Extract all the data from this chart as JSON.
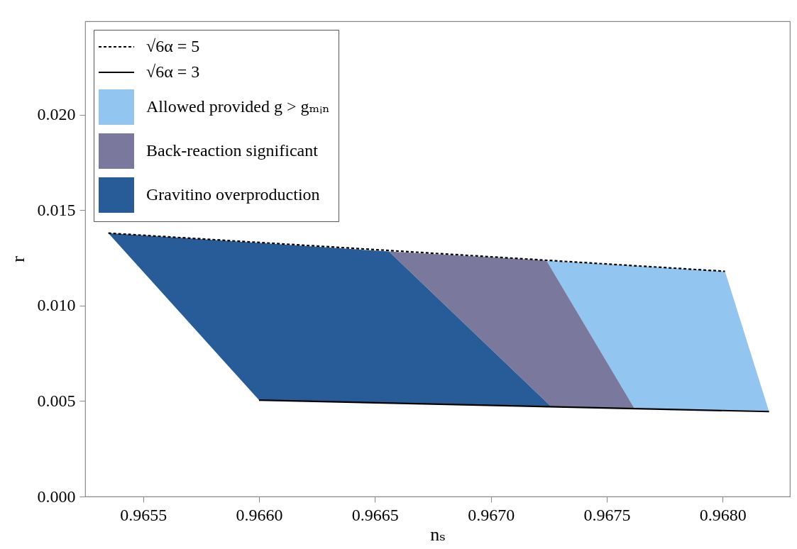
{
  "chart_data": {
    "type": "line",
    "xlabel": "nₛ",
    "ylabel": "r",
    "xlim": [
      0.96525,
      0.96829
    ],
    "ylim": [
      0,
      0.0249
    ],
    "xticks": [
      0.9655,
      {
        "value": 0.966,
        "label": "0.9660"
      },
      0.9665,
      {
        "value": 0.967,
        "label": "0.9670"
      },
      0.9675,
      {
        "value": 0.968,
        "label": "0.9680"
      }
    ],
    "yticks": [
      {
        "value": 0,
        "label": "0.000"
      },
      0.005,
      {
        "value": 0.01,
        "label": "0.010"
      },
      0.015,
      {
        "value": 0.02,
        "label": "0.020"
      }
    ],
    "grid": false,
    "legend": "top left",
    "marker": "none",
    "series": [
      {
        "name": "√6α = 5",
        "line_style": "dashed",
        "color": "#000000",
        "x": [
          0.96535,
          0.96801
        ],
        "values": [
          0.0138,
          0.0118
        ]
      },
      {
        "name": "√6α = 3",
        "line_style": "solid",
        "color": "#000000",
        "x": [
          0.966,
          0.9682
        ],
        "values": [
          0.00505,
          0.00445
        ]
      },
      {
        "name": "Allowed provided g > gₘᵢₙ",
        "type": "area",
        "color": "#92c5f0",
        "x": [
          0.96724,
          0.96801,
          0.9682,
          0.96762
        ],
        "values": [
          0.01236,
          0.0118,
          0.00445,
          0.0046
        ]
      },
      {
        "name": "Back-reaction significant",
        "type": "area",
        "color": "#7a799d",
        "x": [
          0.96656,
          0.96724,
          0.96762,
          0.96726
        ],
        "values": [
          0.01284,
          0.01236,
          0.0046,
          0.00471
        ]
      },
      {
        "name": "Gravitino overproduction",
        "type": "area",
        "color": "#285c99",
        "x": [
          0.96535,
          0.96656,
          0.96726,
          0.966
        ],
        "values": [
          0.0138,
          0.01284,
          0.00471,
          0.00505
        ]
      }
    ]
  }
}
